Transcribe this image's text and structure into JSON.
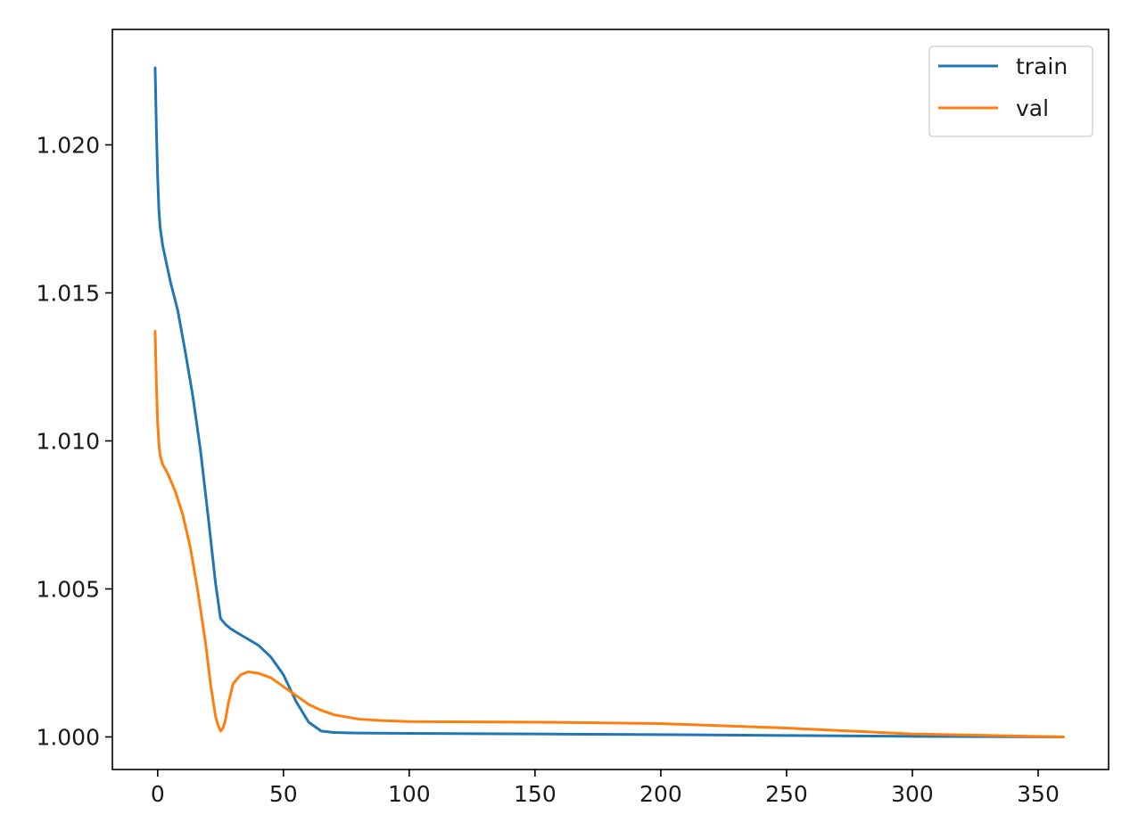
{
  "chart_data": {
    "type": "line",
    "title": "",
    "xlabel": "",
    "ylabel": "",
    "xlim": [
      -18,
      378
    ],
    "ylim": [
      0.9989,
      1.0239
    ],
    "grid": false,
    "legend_position": "top-right",
    "xticks": [
      0,
      50,
      100,
      150,
      200,
      250,
      300,
      350
    ],
    "yticks": [
      1.0,
      1.005,
      1.01,
      1.015,
      1.02
    ],
    "xtick_labels": [
      "0",
      "50",
      "100",
      "150",
      "200",
      "250",
      "300",
      "350"
    ],
    "ytick_labels": [
      "1.000",
      "1.005",
      "1.010",
      "1.015",
      "1.020"
    ],
    "series": [
      {
        "name": "train",
        "color": "#1f77b4",
        "x": [
          -1,
          -0.5,
          0,
          0.5,
          1,
          2,
          3,
          5,
          8,
          11,
          14,
          17,
          20,
          23,
          25,
          27,
          29,
          31,
          35,
          40,
          45,
          50,
          55,
          60,
          65,
          70,
          75,
          80,
          100,
          150,
          200,
          250,
          300,
          360
        ],
        "y": [
          1.0226,
          1.0205,
          1.0189,
          1.0178,
          1.0172,
          1.0166,
          1.0162,
          1.0154,
          1.0144,
          1.013,
          1.0115,
          1.0097,
          1.0075,
          1.0052,
          1.004,
          1.0038,
          1.00366,
          1.00355,
          1.00335,
          1.0031,
          1.0027,
          1.0021,
          1.0012,
          1.0005,
          1.0002,
          1.00015,
          1.00014,
          1.00013,
          1.00012,
          1.0001,
          1.00008,
          1.00005,
          1.00002,
          1.0
        ]
      },
      {
        "name": "val",
        "color": "#ff7f0e",
        "x": [
          -1,
          -0.5,
          0,
          0.5,
          1,
          2,
          4,
          7,
          10,
          13,
          16,
          19,
          21,
          23,
          24,
          25,
          26,
          27,
          28,
          30,
          33,
          36,
          40,
          45,
          50,
          55,
          60,
          65,
          70,
          80,
          90,
          100,
          150,
          200,
          250,
          300,
          360
        ],
        "y": [
          1.0137,
          1.0119,
          1.0106,
          1.0099,
          1.0095,
          1.0092,
          1.0089,
          1.0083,
          1.0075,
          1.0064,
          1.0049,
          1.0032,
          1.0018,
          1.0007,
          1.0004,
          1.0002,
          1.0003,
          1.0006,
          1.0011,
          1.0018,
          1.0021,
          1.0022,
          1.00215,
          1.002,
          1.0017,
          1.0014,
          1.0011,
          1.0009,
          1.00075,
          1.0006,
          1.00055,
          1.00052,
          1.0005,
          1.00045,
          1.0003,
          1.0001,
          1.0
        ]
      }
    ]
  }
}
